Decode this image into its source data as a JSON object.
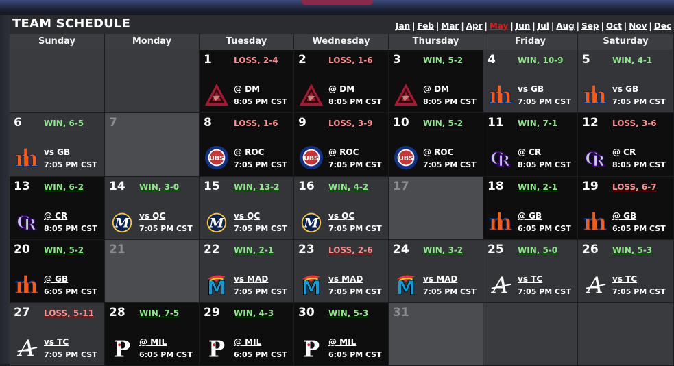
{
  "title": "TEAM SCHEDULE",
  "months": [
    "Jan",
    "Feb",
    "Mar",
    "Apr",
    "May",
    "Jun",
    "Jul",
    "Aug",
    "Sep",
    "Oct",
    "Nov",
    "Dec"
  ],
  "active_month": "May",
  "days": [
    "Sunday",
    "Monday",
    "Tuesday",
    "Wednesday",
    "Thursday",
    "Friday",
    "Saturday"
  ],
  "colors": {
    "win": "#8fe88a",
    "loss": "#ff8f8f",
    "active_month": "#e01818"
  },
  "weeks": [
    [
      {
        "blank": true
      },
      {
        "blank": true
      },
      {
        "num": "1",
        "result": "LOSS, 2-4",
        "outcome": "loss",
        "opp": "@ DM",
        "time": "8:05 PM CST",
        "logo": "dbacks-icon",
        "dark": true
      },
      {
        "num": "2",
        "result": "LOSS, 1-6",
        "outcome": "loss",
        "opp": "@ DM",
        "time": "8:05 PM CST",
        "logo": "dbacks-icon",
        "dark": true
      },
      {
        "num": "3",
        "result": "WIN, 5-2",
        "outcome": "win",
        "opp": "@ DM",
        "time": "8:05 PM CST",
        "logo": "dbacks-icon",
        "dark": true
      },
      {
        "num": "4",
        "result": "WIN, 10-9",
        "outcome": "win",
        "opp": "vs GB",
        "time": "7:05 PM CST",
        "logo": "mets-icon",
        "dark": false
      },
      {
        "num": "5",
        "result": "WIN, 4-1",
        "outcome": "win",
        "opp": "vs GB",
        "time": "7:05 PM CST",
        "logo": "mets-icon",
        "dark": false
      }
    ],
    [
      {
        "num": "6",
        "result": "WIN, 6-5",
        "outcome": "win",
        "opp": "vs GB",
        "time": "7:05 PM CST",
        "logo": "mets-icon",
        "dark": false
      },
      {
        "num": "7",
        "empty": true
      },
      {
        "num": "8",
        "result": "LOSS, 1-6",
        "outcome": "loss",
        "opp": "@ ROC",
        "time": "7:05 PM CST",
        "logo": "cubs-icon",
        "dark": true
      },
      {
        "num": "9",
        "result": "LOSS, 3-9",
        "outcome": "loss",
        "opp": "@ ROC",
        "time": "7:05 PM CST",
        "logo": "cubs-icon",
        "dark": true
      },
      {
        "num": "10",
        "result": "WIN, 5-2",
        "outcome": "win",
        "opp": "@ ROC",
        "time": "7:05 PM CST",
        "logo": "cubs-icon",
        "dark": true
      },
      {
        "num": "11",
        "result": "WIN, 7-1",
        "outcome": "win",
        "opp": "@ CR",
        "time": "8:05 PM CST",
        "logo": "rockies-icon",
        "dark": true
      },
      {
        "num": "12",
        "result": "LOSS, 3-6",
        "outcome": "loss",
        "opp": "@ CR",
        "time": "8:05 PM CST",
        "logo": "rockies-icon",
        "dark": true
      }
    ],
    [
      {
        "num": "13",
        "result": "WIN, 6-2",
        "outcome": "win",
        "opp": "@ CR",
        "time": "8:05 PM CST",
        "logo": "rockies-icon",
        "dark": true
      },
      {
        "num": "14",
        "result": "WIN, 3-0",
        "outcome": "win",
        "opp": "vs QC",
        "time": "7:05 PM CST",
        "logo": "brewers-icon",
        "dark": false
      },
      {
        "num": "15",
        "result": "WIN, 13-2",
        "outcome": "win",
        "opp": "vs QC",
        "time": "7:05 PM CST",
        "logo": "brewers-icon",
        "dark": false
      },
      {
        "num": "16",
        "result": "WIN, 4-2",
        "outcome": "win",
        "opp": "vs QC",
        "time": "7:05 PM CST",
        "logo": "brewers-icon",
        "dark": false
      },
      {
        "num": "17",
        "empty": true
      },
      {
        "num": "18",
        "result": "WIN, 2-1",
        "outcome": "win",
        "opp": "@ GB",
        "time": "6:05 PM CST",
        "logo": "mets-icon",
        "dark": true
      },
      {
        "num": "19",
        "result": "LOSS, 6-7",
        "outcome": "loss",
        "opp": "@ GB",
        "time": "6:05 PM CST",
        "logo": "mets-icon",
        "dark": true
      }
    ],
    [
      {
        "num": "20",
        "result": "WIN, 5-2",
        "outcome": "win",
        "opp": "@ GB",
        "time": "6:05 PM CST",
        "logo": "mets-icon",
        "dark": true
      },
      {
        "num": "21",
        "empty": true
      },
      {
        "num": "22",
        "result": "WIN, 2-1",
        "outcome": "win",
        "opp": "vs MAD",
        "time": "7:05 PM CST",
        "logo": "marlins-icon",
        "dark": false
      },
      {
        "num": "23",
        "result": "LOSS, 2-6",
        "outcome": "loss",
        "opp": "vs MAD",
        "time": "7:05 PM CST",
        "logo": "marlins-icon",
        "dark": false
      },
      {
        "num": "24",
        "result": "WIN, 3-2",
        "outcome": "win",
        "opp": "vs MAD",
        "time": "7:05 PM CST",
        "logo": "marlins-icon",
        "dark": false
      },
      {
        "num": "25",
        "result": "WIN, 5-0",
        "outcome": "win",
        "opp": "vs TC",
        "time": "7:05 PM CST",
        "logo": "braves-icon",
        "dark": false
      },
      {
        "num": "26",
        "result": "WIN, 5-3",
        "outcome": "win",
        "opp": "vs TC",
        "time": "7:05 PM CST",
        "logo": "braves-icon",
        "dark": false
      }
    ],
    [
      {
        "num": "27",
        "result": "LOSS, 5-11",
        "outcome": "loss",
        "opp": "vs TC",
        "time": "7:05 PM CST",
        "logo": "braves-icon",
        "dark": false
      },
      {
        "num": "28",
        "result": "WIN, 7-5",
        "outcome": "win",
        "opp": "@ MIL",
        "time": "6:05 PM CST",
        "logo": "phillies-icon",
        "dark": true
      },
      {
        "num": "29",
        "result": "WIN, 4-3",
        "outcome": "win",
        "opp": "@ MIL",
        "time": "6:05 PM CST",
        "logo": "phillies-icon",
        "dark": true
      },
      {
        "num": "30",
        "result": "WIN, 5-3",
        "outcome": "win",
        "opp": "@ MIL",
        "time": "6:05 PM CST",
        "logo": "phillies-icon",
        "dark": true
      },
      {
        "num": "31",
        "empty": true
      },
      {
        "blank": true
      },
      {
        "blank": true
      }
    ]
  ]
}
